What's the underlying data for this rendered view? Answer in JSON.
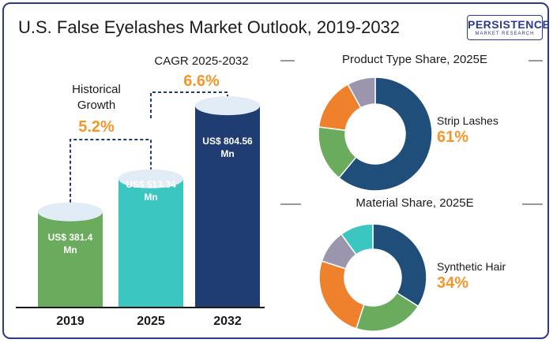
{
  "title": "U.S. False Eyelashes Market Outlook, 2019-2032",
  "logo": {
    "main": "PERSISTENCE",
    "sub": "MARKET RESEARCH"
  },
  "colors": {
    "orange": "#f5962a",
    "navy": "#1f3d73",
    "teal": "#3cc6c2",
    "green": "#6aab5e",
    "border": "#2b3a8c"
  },
  "chart_data": [
    {
      "type": "bar",
      "categories": [
        "2019",
        "2025",
        "2032"
      ],
      "values": [
        381.4,
        513.34,
        804.56
      ],
      "value_labels": [
        "US$ 381.4\nMn",
        "US$ 513.34\nMn",
        "US$ 804.56\nMn"
      ],
      "bar_colors": [
        "#6aab5e",
        "#3cc6c2",
        "#1f3d73"
      ],
      "annotations": {
        "historical": {
          "label": "Historical\nGrowth",
          "value": "5.2%"
        },
        "forecast": {
          "label": "CAGR 2025-2032",
          "value": "6.6%"
        }
      }
    },
    {
      "type": "pie",
      "title": "Product Type Share, 2025E",
      "highlight": {
        "name": "Strip Lashes",
        "value": "61%"
      },
      "values": [
        61,
        16,
        15,
        8
      ],
      "colors": [
        "#1f4e7a",
        "#6aab5e",
        "#f0812c",
        "#9b96ad"
      ]
    },
    {
      "type": "pie",
      "title": "Material Share, 2025E",
      "highlight": {
        "name": "Synthetic Hair",
        "value": "34%"
      },
      "values": [
        34,
        21,
        25,
        10,
        10
      ],
      "colors": [
        "#1f4e7a",
        "#6aab5e",
        "#f0812c",
        "#9b96ad",
        "#3cc6c2"
      ]
    }
  ]
}
